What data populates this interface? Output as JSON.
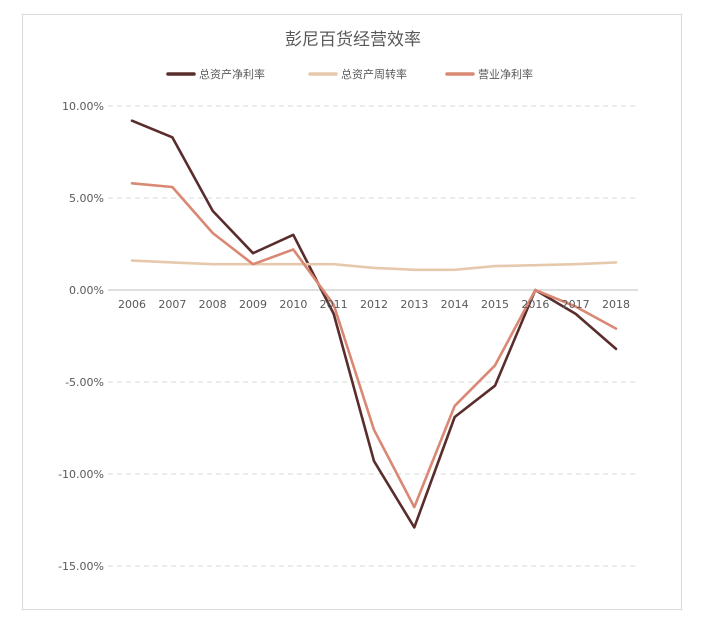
{
  "chart_data": {
    "type": "line",
    "title": "彭尼百货经营效率",
    "xlabel": "",
    "ylabel": "",
    "categories": [
      "2006",
      "2007",
      "2008",
      "2009",
      "2010",
      "2011",
      "2012",
      "2013",
      "2014",
      "2015",
      "2016",
      "2017",
      "2018"
    ],
    "ylim": [
      -15,
      10
    ],
    "yticks": [
      10,
      5,
      0,
      -5,
      -10,
      -15
    ],
    "ytick_labels": [
      "10.00%",
      "5.00%",
      "0.00%",
      "-5.00%",
      "-10.00%",
      "-15.00%"
    ],
    "grid": true,
    "legend_position": "top",
    "series": [
      {
        "name": "总资产净利率",
        "color": "#5a2d2d",
        "values": [
          9.2,
          8.3,
          4.3,
          2.0,
          3.0,
          -1.3,
          -9.3,
          -12.9,
          -6.9,
          -5.2,
          0.0,
          -1.3,
          -3.2
        ]
      },
      {
        "name": "总资产周转率",
        "color": "#e6c9ad",
        "values": [
          1.6,
          1.5,
          1.4,
          1.4,
          1.4,
          1.4,
          1.2,
          1.1,
          1.1,
          1.3,
          1.35,
          1.4,
          1.5
        ]
      },
      {
        "name": "营业净利率",
        "color": "#d98873",
        "values": [
          5.8,
          5.6,
          3.1,
          1.4,
          2.2,
          -0.8,
          -7.6,
          -11.8,
          -6.3,
          -4.1,
          0.0,
          -0.9,
          -2.1
        ]
      }
    ]
  }
}
